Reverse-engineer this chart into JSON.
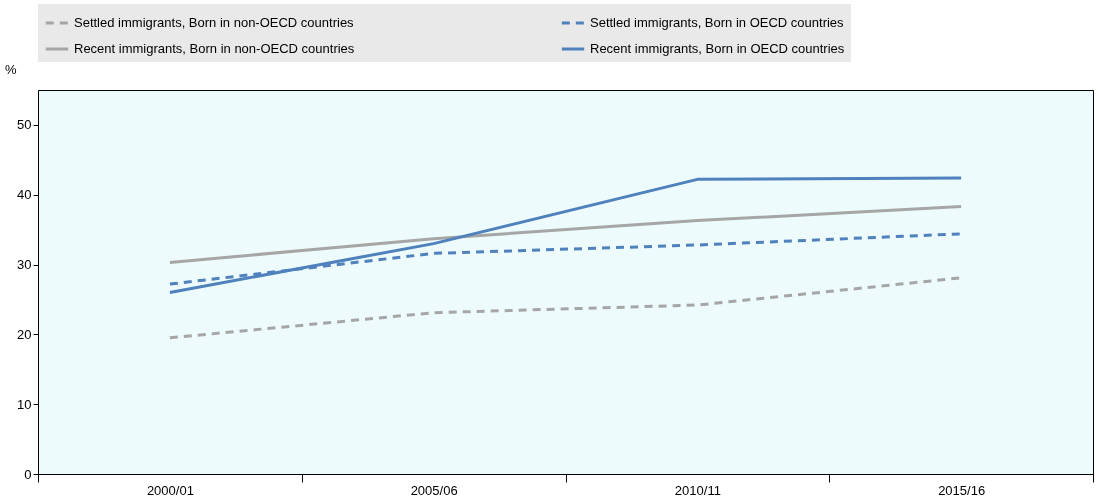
{
  "chart_data": {
    "type": "line",
    "ylabel": "%",
    "categories": [
      "2000/01",
      "2005/06",
      "2010/11",
      "2015/16"
    ],
    "ylim": [
      0,
      55
    ],
    "yticks": [
      0,
      10,
      20,
      30,
      40,
      50
    ],
    "grid": false,
    "legend": "top",
    "marker": "none",
    "series": [
      {
        "name": "Settled immigrants, Born in non-OECD countries",
        "color": "#a6a6a6",
        "line_style": "dashed",
        "values": [
          19.5,
          23.1,
          24.2,
          28.1
        ]
      },
      {
        "name": "Settled immigrants, Born in OECD countries",
        "color": "#4f81bd",
        "line_style": "dashed",
        "values": [
          27.2,
          31.6,
          32.8,
          34.4
        ]
      },
      {
        "name": "Recent immigrants, Born in non-OECD countries",
        "color": "#a6a6a6",
        "line_style": "solid",
        "values": [
          30.3,
          33.7,
          36.3,
          38.3
        ]
      },
      {
        "name": "Recent immigrants, Born in OECD countries",
        "color": "#4f81bd",
        "line_style": "solid",
        "values": [
          26.0,
          33.0,
          42.2,
          42.4
        ]
      }
    ]
  }
}
